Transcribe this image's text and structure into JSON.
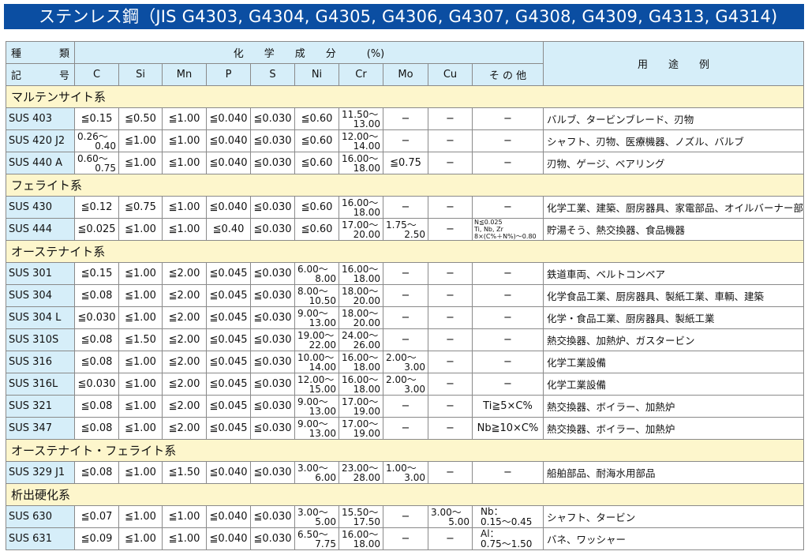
{
  "title": "ステンレス鋼（JIS G4303, G4304, G4305, G4306, G4307, G4308, G4309, G4313, G4314)",
  "header": {
    "kind_top": [
      "種",
      "類"
    ],
    "kind_bottom": [
      "記",
      "号"
    ],
    "composition": "化　　学　　成　　分　　　(%)",
    "uses": "用　　途　　例",
    "elements": [
      "C",
      "Si",
      "Mn",
      "P",
      "S",
      "Ni",
      "Cr",
      "Mo",
      "Cu",
      "そ の 他"
    ]
  },
  "sections": [
    {
      "name": "マルテンサイト系",
      "rows": [
        {
          "code": "SUS 403",
          "vals": [
            "≦0.15",
            "≦0.50",
            "≦1.00",
            "≦0.040",
            "≦0.030",
            "≦0.60",
            [
              "11.50～",
              "13.00"
            ],
            "−",
            "−",
            "−"
          ],
          "use": "バルブ、タービンブレード、刃物"
        },
        {
          "code": "SUS 420 J2",
          "vals": [
            [
              "0.26～",
              "0.40"
            ],
            "≦1.00",
            "≦1.00",
            "≦0.040",
            "≦0.030",
            "≦0.60",
            [
              "12.00～",
              "14.00"
            ],
            "−",
            "−",
            "−"
          ],
          "use": "シャフト、刃物、医療機器、ノズル、バルブ"
        },
        {
          "code": "SUS 440 A",
          "vals": [
            [
              "0.60～",
              "0.75"
            ],
            "≦1.00",
            "≦1.00",
            "≦0.040",
            "≦0.030",
            "≦0.60",
            [
              "16.00～",
              "18.00"
            ],
            "≦0.75",
            "−",
            "−"
          ],
          "use": "刃物、ゲージ、ベアリング"
        }
      ]
    },
    {
      "name": "フェライト系",
      "rows": [
        {
          "code": "SUS 430",
          "vals": [
            "≦0.12",
            "≦0.75",
            "≦1.00",
            "≦0.040",
            "≦0.030",
            "≦0.60",
            [
              "16.00～",
              "18.00"
            ],
            "−",
            "−",
            "−"
          ],
          "use": "化学工業、建築、厨房器具、家電部品、オイルバーナー部品"
        },
        {
          "code": "SUS 444",
          "vals": [
            "≦0.025",
            "≦1.00",
            "≦1.00",
            "≦0.40",
            "≦0.030",
            "≦0.60",
            [
              "17.00～",
              "20.00"
            ],
            [
              "1.75～",
              "2.50"
            ],
            "−",
            {
              "tiny": [
                "N≦0.025",
                "Ti, Nb, Zr",
                "8×(C%＋N%)～0.80"
              ]
            }
          ],
          "use": "貯湯そう、熱交換器、食品機器"
        }
      ]
    },
    {
      "name": "オーステナイト系",
      "rows": [
        {
          "code": "SUS 301",
          "vals": [
            "≦0.15",
            "≦1.00",
            "≦2.00",
            "≦0.045",
            "≦0.030",
            [
              "6.00～",
              "8.00"
            ],
            [
              "16.00～",
              "18.00"
            ],
            "−",
            "−",
            "−"
          ],
          "use": "鉄道車両、ベルトコンベア"
        },
        {
          "code": "SUS 304",
          "vals": [
            "≦0.08",
            "≦1.00",
            "≦2.00",
            "≦0.045",
            "≦0.030",
            [
              "8.00～",
              "10.50"
            ],
            [
              "18.00～",
              "20.00"
            ],
            "−",
            "−",
            "−"
          ],
          "use": "化学食品工業、厨房器具、製紙工業、車輌、建築"
        },
        {
          "code": "SUS 304 L",
          "vals": [
            "≦0.030",
            "≦1.00",
            "≦2.00",
            "≦0.045",
            "≦0.030",
            [
              "9.00～",
              "13.00"
            ],
            [
              "18.00～",
              "20.00"
            ],
            "−",
            "−",
            "−"
          ],
          "use": "化学・食品工業、厨房器具、製紙工業"
        },
        {
          "code": "SUS 310S",
          "vals": [
            "≦0.08",
            "≦1.50",
            "≦2.00",
            "≦0.045",
            "≦0.030",
            [
              "19.00～",
              "22.00"
            ],
            [
              "24.00～",
              "26.00"
            ],
            "−",
            "−",
            "−"
          ],
          "use": "熱交換器、加熱炉、ガスタービン"
        },
        {
          "code": "SUS 316",
          "vals": [
            "≦0.08",
            "≦1.00",
            "≦2.00",
            "≦0.045",
            "≦0.030",
            [
              "10.00～",
              "14.00"
            ],
            [
              "16.00～",
              "18.00"
            ],
            [
              "2.00～",
              "3.00"
            ],
            "−",
            "−"
          ],
          "use": "化学工業設備"
        },
        {
          "code": "SUS 316L",
          "vals": [
            "≦0.030",
            "≦1.00",
            "≦2.00",
            "≦0.045",
            "≦0.030",
            [
              "12.00～",
              "15.00"
            ],
            [
              "16.00～",
              "18.00"
            ],
            [
              "2.00～",
              "3.00"
            ],
            "−",
            "−"
          ],
          "use": "化学工業設備"
        },
        {
          "code": "SUS 321",
          "vals": [
            "≦0.08",
            "≦1.00",
            "≦2.00",
            "≦0.045",
            "≦0.030",
            [
              "9.00～",
              "13.00"
            ],
            [
              "17.00～",
              "19.00"
            ],
            "−",
            "−",
            "Ti≧5×C%"
          ],
          "use": "熱交換器、ボイラー、加熱炉"
        },
        {
          "code": "SUS 347",
          "vals": [
            "≦0.08",
            "≦1.00",
            "≦2.00",
            "≦0.045",
            "≦0.030",
            [
              "9.00～",
              "13.00"
            ],
            [
              "17.00～",
              "19.00"
            ],
            "−",
            "−",
            "Nb≧10×C%"
          ],
          "use": "熱交換器、ボイラー、加熱炉"
        }
      ]
    },
    {
      "name": "オーステナイト・フェライト系",
      "rows": [
        {
          "code": "SUS 329 J1",
          "vals": [
            "≦0.08",
            "≦1.00",
            "≦1.50",
            "≦0.040",
            "≦0.030",
            [
              "3.00～",
              "6.00"
            ],
            [
              "23.00～",
              "28.00"
            ],
            [
              "1.00～",
              "3.00"
            ],
            "−",
            "−"
          ],
          "use": "船舶部品、耐海水用部品"
        }
      ]
    },
    {
      "name": "析出硬化系",
      "rows": [
        {
          "code": "SUS 630",
          "vals": [
            "≦0.07",
            "≦1.00",
            "≦1.00",
            "≦0.040",
            "≦0.030",
            [
              "3.00～",
              "5.00"
            ],
            [
              "15.50～",
              "17.50"
            ],
            "−",
            [
              "3.00～",
              "5.00"
            ],
            {
              "two": [
                "Nb：",
                "0.15～0.45"
              ]
            }
          ],
          "use": "シャフト、タービン"
        },
        {
          "code": "SUS 631",
          "vals": [
            "≦0.09",
            "≦1.00",
            "≦1.00",
            "≦0.040",
            "≦0.030",
            [
              "6.50～",
              "7.75"
            ],
            [
              "16.00～",
              "18.00"
            ],
            "−",
            "−",
            {
              "two": [
                "Al：",
                "0.75～1.50"
              ]
            }
          ],
          "use": "バネ、ワッシャー"
        }
      ]
    }
  ]
}
